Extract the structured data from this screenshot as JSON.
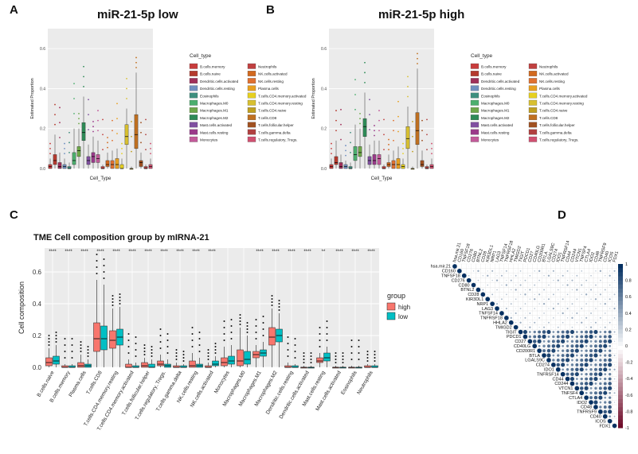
{
  "panels": {
    "a": "A",
    "b": "B",
    "c": "C",
    "d": "D"
  },
  "colors": {
    "high": "#F8766D",
    "low": "#00BFC4"
  },
  "chart_data": [
    {
      "type": "box",
      "title": "miR-21-5p low",
      "xlabel": "Cell_Type",
      "ylabel": "Estimated Proportion",
      "ylim": [
        0,
        0.7
      ],
      "yticks": [
        "0.0",
        "0.2",
        "0.4",
        "0.6"
      ],
      "legend_title": "Cell_type",
      "legend": [
        "B.cells.memory",
        "B.cells.naive",
        "Dendritic.cells.activated",
        "Dendritic.cells.resting",
        "Eosinophils",
        "Macrophages.M0",
        "Macrophages.M1",
        "Macrophages.M2",
        "Mast.cells.activated",
        "Mast.cells.resting",
        "Monocytes",
        "Neutrophils",
        "NK.cells.activated",
        "NK.cells.resting",
        "Plasma.cells",
        "T.cells.CD4.memory.activated",
        "T.cells.CD4.memory.resting",
        "T.cells.CD4.naive",
        "T.cells.CD8",
        "T.cells.follicular.helper",
        "T.cells.gamma.delta",
        "T.cells.regulatory..Tregs."
      ],
      "legend_colors": [
        "#C83C3C",
        "#B53A2E",
        "#A0305A",
        "#7090C0",
        "#3E8E7E",
        "#4CAF6E",
        "#6EA849",
        "#2E8B57",
        "#8050A0",
        "#9A3A8A",
        "#C25A9A",
        "#C04040",
        "#D2691E",
        "#E07030",
        "#E8A020",
        "#E6D020",
        "#D8C030",
        "#C0A020",
        "#C07020",
        "#A05020",
        "#B04040",
        "#D05070"
      ],
      "boxes": [
        {
          "q1": 0.0,
          "med": 0.01,
          "q3": 0.02,
          "max": 0.05,
          "color": "#C83C3C"
        },
        {
          "q1": 0.02,
          "med": 0.04,
          "q3": 0.07,
          "max": 0.17,
          "color": "#B53A2E"
        },
        {
          "q1": 0.0,
          "med": 0.01,
          "q3": 0.03,
          "max": 0.08,
          "color": "#A0305A"
        },
        {
          "q1": 0.0,
          "med": 0.01,
          "q3": 0.02,
          "max": 0.05,
          "color": "#7090C0"
        },
        {
          "q1": 0.0,
          "med": 0.0,
          "q3": 0.01,
          "max": 0.03,
          "color": "#3E8E7E"
        },
        {
          "q1": 0.02,
          "med": 0.04,
          "q3": 0.08,
          "max": 0.2,
          "color": "#4CAF6E"
        },
        {
          "q1": 0.06,
          "med": 0.09,
          "q3": 0.11,
          "max": 0.2,
          "color": "#6EA849"
        },
        {
          "q1": 0.14,
          "med": 0.18,
          "q3": 0.23,
          "max": 0.36,
          "color": "#2E8B57"
        },
        {
          "q1": 0.02,
          "med": 0.04,
          "q3": 0.06,
          "max": 0.12,
          "color": "#8050A0"
        },
        {
          "q1": 0.03,
          "med": 0.06,
          "q3": 0.08,
          "max": 0.16,
          "color": "#9A3A8A"
        },
        {
          "q1": 0.03,
          "med": 0.05,
          "q3": 0.07,
          "max": 0.14,
          "color": "#C25A9A"
        },
        {
          "q1": 0.0,
          "med": 0.0,
          "q3": 0.01,
          "max": 0.02,
          "color": "#C04040"
        },
        {
          "q1": 0.01,
          "med": 0.02,
          "q3": 0.04,
          "max": 0.08,
          "color": "#D2691E"
        },
        {
          "q1": 0.0,
          "med": 0.02,
          "q3": 0.04,
          "max": 0.09,
          "color": "#E07030"
        },
        {
          "q1": 0.0,
          "med": 0.02,
          "q3": 0.05,
          "max": 0.1,
          "color": "#E8A020"
        },
        {
          "q1": 0.0,
          "med": 0.0,
          "q3": 0.02,
          "max": 0.05,
          "color": "#E6D020"
        },
        {
          "q1": 0.12,
          "med": 0.16,
          "q3": 0.22,
          "max": 0.3,
          "color": "#D8C030"
        },
        {
          "q1": 0.0,
          "med": 0.0,
          "q3": 0.0,
          "max": 0.01,
          "color": "#C0A020"
        },
        {
          "q1": 0.1,
          "med": 0.17,
          "q3": 0.27,
          "max": 0.48,
          "color": "#C07020"
        },
        {
          "q1": 0.01,
          "med": 0.03,
          "q3": 0.04,
          "max": 0.08,
          "color": "#A05020"
        },
        {
          "q1": 0.0,
          "med": 0.0,
          "q3": 0.01,
          "max": 0.02,
          "color": "#B04040"
        },
        {
          "q1": 0.0,
          "med": 0.01,
          "q3": 0.02,
          "max": 0.05,
          "color": "#D05070"
        }
      ]
    },
    {
      "type": "box",
      "title": "miR-21-5p high",
      "xlabel": "Cell_Type",
      "ylabel": "Estimated Proportion",
      "ylim": [
        0,
        0.7
      ],
      "yticks": [
        "0.0",
        "0.2",
        "0.4",
        "0.6"
      ],
      "legend_title": "Cell_type",
      "legend": [
        "B.cells.memory",
        "B.cells.naive",
        "Dendritic.cells.activated",
        "Dendritic.cells.resting",
        "Eosinophils",
        "Macrophages.M0",
        "Macrophages.M1",
        "Macrophages.M2",
        "Mast.cells.activated",
        "Mast.cells.resting",
        "Monocytes",
        "Neutrophils",
        "NK.cells.activated",
        "NK.cells.resting",
        "Plasma.cells",
        "T.cells.CD4.memory.activated",
        "T.cells.CD4.memory.resting",
        "T.cells.CD4.naive",
        "T.cells.CD8",
        "T.cells.follicular.helper",
        "T.cells.gamma.delta",
        "T.cells.regulatory..Tregs."
      ],
      "legend_colors": [
        "#C83C3C",
        "#B53A2E",
        "#A0305A",
        "#7090C0",
        "#3E8E7E",
        "#4CAF6E",
        "#6EA849",
        "#2E8B57",
        "#8050A0",
        "#9A3A8A",
        "#C25A9A",
        "#C04040",
        "#D2691E",
        "#E07030",
        "#E8A020",
        "#E6D020",
        "#D8C030",
        "#C0A020",
        "#C07020",
        "#A05020",
        "#B04040",
        "#D05070"
      ],
      "boxes": [
        {
          "q1": 0.0,
          "med": 0.01,
          "q3": 0.02,
          "max": 0.05,
          "color": "#C83C3C"
        },
        {
          "q1": 0.02,
          "med": 0.03,
          "q3": 0.06,
          "max": 0.14,
          "color": "#B53A2E"
        },
        {
          "q1": 0.0,
          "med": 0.01,
          "q3": 0.03,
          "max": 0.07,
          "color": "#A0305A"
        },
        {
          "q1": 0.0,
          "med": 0.01,
          "q3": 0.02,
          "max": 0.04,
          "color": "#7090C0"
        },
        {
          "q1": 0.0,
          "med": 0.0,
          "q3": 0.01,
          "max": 0.03,
          "color": "#3E8E7E"
        },
        {
          "q1": 0.04,
          "med": 0.07,
          "q3": 0.11,
          "max": 0.22,
          "color": "#4CAF6E"
        },
        {
          "q1": 0.06,
          "med": 0.08,
          "q3": 0.11,
          "max": 0.2,
          "color": "#6EA849"
        },
        {
          "q1": 0.16,
          "med": 0.21,
          "q3": 0.25,
          "max": 0.38,
          "color": "#2E8B57"
        },
        {
          "q1": 0.02,
          "med": 0.04,
          "q3": 0.06,
          "max": 0.12,
          "color": "#8050A0"
        },
        {
          "q1": 0.02,
          "med": 0.04,
          "q3": 0.07,
          "max": 0.14,
          "color": "#9A3A8A"
        },
        {
          "q1": 0.02,
          "med": 0.05,
          "q3": 0.07,
          "max": 0.14,
          "color": "#C25A9A"
        },
        {
          "q1": 0.0,
          "med": 0.0,
          "q3": 0.01,
          "max": 0.02,
          "color": "#C04040"
        },
        {
          "q1": 0.01,
          "med": 0.02,
          "q3": 0.03,
          "max": 0.07,
          "color": "#D2691E"
        },
        {
          "q1": 0.0,
          "med": 0.02,
          "q3": 0.04,
          "max": 0.09,
          "color": "#E07030"
        },
        {
          "q1": 0.0,
          "med": 0.02,
          "q3": 0.05,
          "max": 0.11,
          "color": "#E8A020"
        },
        {
          "q1": 0.0,
          "med": 0.01,
          "q3": 0.02,
          "max": 0.05,
          "color": "#E6D020"
        },
        {
          "q1": 0.1,
          "med": 0.15,
          "q3": 0.21,
          "max": 0.31,
          "color": "#D8C030"
        },
        {
          "q1": 0.0,
          "med": 0.0,
          "q3": 0.0,
          "max": 0.01,
          "color": "#C0A020"
        },
        {
          "q1": 0.12,
          "med": 0.19,
          "q3": 0.28,
          "max": 0.5,
          "color": "#C07020"
        },
        {
          "q1": 0.01,
          "med": 0.02,
          "q3": 0.04,
          "max": 0.09,
          "color": "#A05020"
        },
        {
          "q1": 0.0,
          "med": 0.0,
          "q3": 0.01,
          "max": 0.02,
          "color": "#B04040"
        },
        {
          "q1": 0.0,
          "med": 0.01,
          "q3": 0.02,
          "max": 0.05,
          "color": "#D05070"
        }
      ]
    },
    {
      "type": "box",
      "title": "TME Cell composition group by mIRNA-21",
      "ylabel": "Cell composition",
      "xlabel": "",
      "ylim": [
        0,
        0.75
      ],
      "yticks": [
        "0.0",
        "0.2",
        "0.4",
        "0.6"
      ],
      "legend_title": "group",
      "series_names": [
        "high",
        "low"
      ],
      "categories": [
        "B.cells.naive",
        "B.cells.memory",
        "Plasma.cells",
        "T.cells.CD8",
        "T.cells.CD4.memory.resting",
        "T.cells.CD4.memory.activated",
        "T.cells.follicular.helper",
        "T.cells.regulatory..Tregs.",
        "T.cells.gamma.delta",
        "NK.cells.resting",
        "NK.cells.activated",
        "Monocytes",
        "Macrophages.M0",
        "Macrophages.M1",
        "Macrophages.M2",
        "Dendritic.cells.resting",
        "Dendritic.cells.activated",
        "Mast.cells.resting",
        "Mast.cells.activated",
        "Eosinophils",
        "Neutrophils"
      ],
      "significance": [
        "****",
        "****",
        "****",
        "****",
        "****",
        "****",
        "****",
        "****",
        "****",
        "****",
        "****",
        "",
        "",
        "****",
        "****",
        "****",
        "****",
        "**",
        "****",
        "****",
        "****"
      ],
      "high": [
        {
          "q1": 0.01,
          "med": 0.03,
          "q3": 0.06,
          "max": 0.12
        },
        {
          "q1": 0.0,
          "med": 0.0,
          "q3": 0.01,
          "max": 0.02
        },
        {
          "q1": 0.0,
          "med": 0.01,
          "q3": 0.03,
          "max": 0.08
        },
        {
          "q1": 0.1,
          "med": 0.18,
          "q3": 0.28,
          "max": 0.55
        },
        {
          "q1": 0.12,
          "med": 0.17,
          "q3": 0.23,
          "max": 0.37
        },
        {
          "q1": 0.0,
          "med": 0.0,
          "q3": 0.02,
          "max": 0.05
        },
        {
          "q1": 0.0,
          "med": 0.01,
          "q3": 0.03,
          "max": 0.06
        },
        {
          "q1": 0.01,
          "med": 0.02,
          "q3": 0.04,
          "max": 0.08
        },
        {
          "q1": 0.0,
          "med": 0.0,
          "q3": 0.01,
          "max": 0.03
        },
        {
          "q1": 0.0,
          "med": 0.01,
          "q3": 0.04,
          "max": 0.09
        },
        {
          "q1": 0.0,
          "med": 0.0,
          "q3": 0.01,
          "max": 0.03
        },
        {
          "q1": 0.01,
          "med": 0.03,
          "q3": 0.06,
          "max": 0.13
        },
        {
          "q1": 0.01,
          "med": 0.04,
          "q3": 0.11,
          "max": 0.25
        },
        {
          "q1": 0.06,
          "med": 0.08,
          "q3": 0.1,
          "max": 0.14
        },
        {
          "q1": 0.14,
          "med": 0.19,
          "q3": 0.25,
          "max": 0.37
        },
        {
          "q1": 0.0,
          "med": 0.0,
          "q3": 0.01,
          "max": 0.03
        },
        {
          "q1": 0.0,
          "med": 0.0,
          "q3": 0.0,
          "max": 0.01
        },
        {
          "q1": 0.03,
          "med": 0.04,
          "q3": 0.06,
          "max": 0.09
        },
        {
          "q1": 0.0,
          "med": 0.0,
          "q3": 0.0,
          "max": 0.01
        },
        {
          "q1": 0.0,
          "med": 0.0,
          "q3": 0.0,
          "max": 0.01
        },
        {
          "q1": 0.0,
          "med": 0.0,
          "q3": 0.01,
          "max": 0.02
        }
      ],
      "low": [
        {
          "q1": 0.02,
          "med": 0.04,
          "q3": 0.07,
          "max": 0.14
        },
        {
          "q1": 0.0,
          "med": 0.0,
          "q3": 0.01,
          "max": 0.02
        },
        {
          "q1": 0.0,
          "med": 0.01,
          "q3": 0.02,
          "max": 0.05
        },
        {
          "q1": 0.11,
          "med": 0.18,
          "q3": 0.26,
          "max": 0.52
        },
        {
          "q1": 0.14,
          "med": 0.19,
          "q3": 0.24,
          "max": 0.38
        },
        {
          "q1": 0.0,
          "med": 0.0,
          "q3": 0.01,
          "max": 0.03
        },
        {
          "q1": 0.0,
          "med": 0.0,
          "q3": 0.02,
          "max": 0.05
        },
        {
          "q1": 0.0,
          "med": 0.01,
          "q3": 0.02,
          "max": 0.05
        },
        {
          "q1": 0.0,
          "med": 0.0,
          "q3": 0.01,
          "max": 0.02
        },
        {
          "q1": 0.0,
          "med": 0.01,
          "q3": 0.02,
          "max": 0.06
        },
        {
          "q1": 0.01,
          "med": 0.02,
          "q3": 0.04,
          "max": 0.07
        },
        {
          "q1": 0.02,
          "med": 0.04,
          "q3": 0.07,
          "max": 0.14
        },
        {
          "q1": 0.02,
          "med": 0.05,
          "q3": 0.1,
          "max": 0.2
        },
        {
          "q1": 0.07,
          "med": 0.09,
          "q3": 0.11,
          "max": 0.16
        },
        {
          "q1": 0.16,
          "med": 0.2,
          "q3": 0.24,
          "max": 0.34
        },
        {
          "q1": 0.0,
          "med": 0.0,
          "q3": 0.01,
          "max": 0.02
        },
        {
          "q1": 0.0,
          "med": 0.0,
          "q3": 0.0,
          "max": 0.01
        },
        {
          "q1": 0.04,
          "med": 0.06,
          "q3": 0.09,
          "max": 0.13
        },
        {
          "q1": 0.0,
          "med": 0.0,
          "q3": 0.0,
          "max": 0.01
        },
        {
          "q1": 0.0,
          "med": 0.0,
          "q3": 0.0,
          "max": 0.01
        },
        {
          "q1": 0.0,
          "med": 0.0,
          "q3": 0.01,
          "max": 0.02
        }
      ]
    },
    {
      "type": "heatmap",
      "title": "",
      "variables": [
        "hsa.mir.21",
        "CD160",
        "TNFSF18",
        "CD276",
        "CD80",
        "BTNL2",
        "CD28",
        "KIR3DL1",
        "NRP1",
        "LAG3",
        "TNFSF14",
        "TNFRSF18",
        "HHLA2",
        "TMIGD2",
        "TIGIT",
        "PDCD1",
        "CD27",
        "CD40LG",
        "CD200R1",
        "BTLA",
        "LGALS9C",
        "CD274",
        "IDO1",
        "TNFRSF14",
        "CD44",
        "CD244",
        "VTCN1",
        "TNFSF4",
        "CTLA4",
        "IDO2",
        "CD48",
        "TNFRSF9",
        "CD40",
        "ICOS",
        "FDX1"
      ],
      "colorbar_ticks": [
        "1",
        "0.8",
        "0.6",
        "0.4",
        "0.2",
        "0",
        "-0.2",
        "-0.4",
        "-0.6",
        "-0.8",
        "-1"
      ],
      "colorbar_range": [
        -1,
        1
      ],
      "note": "upper-triangle correlation matrix; values synthesized per immune-checkpoint cluster"
    }
  ]
}
